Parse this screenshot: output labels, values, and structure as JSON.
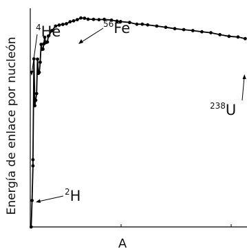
{
  "chart_data": {
    "type": "line",
    "xlabel": "A",
    "ylabel": "Energía de enlace por nucleón",
    "xlim": [
      0,
      240
    ],
    "ylim": [
      0,
      9.2
    ],
    "grid": false,
    "series": [
      {
        "values": [
          [
            1,
            0
          ],
          [
            2,
            1.11
          ],
          [
            3,
            2.57
          ],
          [
            3,
            2.83
          ],
          [
            4,
            7.07
          ],
          [
            5,
            5.1
          ],
          [
            6,
            5.33
          ],
          [
            7,
            5.61
          ],
          [
            8,
            7.06
          ],
          [
            9,
            6.46
          ],
          [
            10,
            6.5
          ],
          [
            11,
            6.93
          ],
          [
            12,
            7.68
          ],
          [
            13,
            7.47
          ],
          [
            14,
            7.48
          ],
          [
            15,
            7.7
          ],
          [
            16,
            7.98
          ],
          [
            17,
            7.75
          ],
          [
            18,
            7.77
          ],
          [
            19,
            7.78
          ],
          [
            20,
            8.03
          ],
          [
            24,
            8.26
          ],
          [
            28,
            8.45
          ],
          [
            32,
            8.49
          ],
          [
            36,
            8.52
          ],
          [
            40,
            8.55
          ],
          [
            44,
            8.63
          ],
          [
            48,
            8.67
          ],
          [
            52,
            8.72
          ],
          [
            56,
            8.79
          ],
          [
            60,
            8.78
          ],
          [
            64,
            8.74
          ],
          [
            70,
            8.73
          ],
          [
            76,
            8.72
          ],
          [
            82,
            8.73
          ],
          [
            90,
            8.7
          ],
          [
            96,
            8.66
          ],
          [
            100,
            8.64
          ],
          [
            110,
            8.6
          ],
          [
            118,
            8.53
          ],
          [
            124,
            8.53
          ],
          [
            130,
            8.5
          ],
          [
            140,
            8.45
          ],
          [
            150,
            8.4
          ],
          [
            160,
            8.34
          ],
          [
            170,
            8.3
          ],
          [
            180,
            8.26
          ],
          [
            190,
            8.21
          ],
          [
            200,
            8.17
          ],
          [
            210,
            8.09
          ],
          [
            220,
            8.02
          ],
          [
            230,
            7.99
          ],
          [
            238,
            7.92
          ]
        ]
      }
    ],
    "annotations": [
      {
        "nucleus": "He",
        "mass": "4"
      },
      {
        "nucleus": "Fe",
        "mass": "56"
      },
      {
        "nucleus": "U",
        "mass": "238"
      },
      {
        "nucleus": "H",
        "mass": "2"
      }
    ]
  }
}
